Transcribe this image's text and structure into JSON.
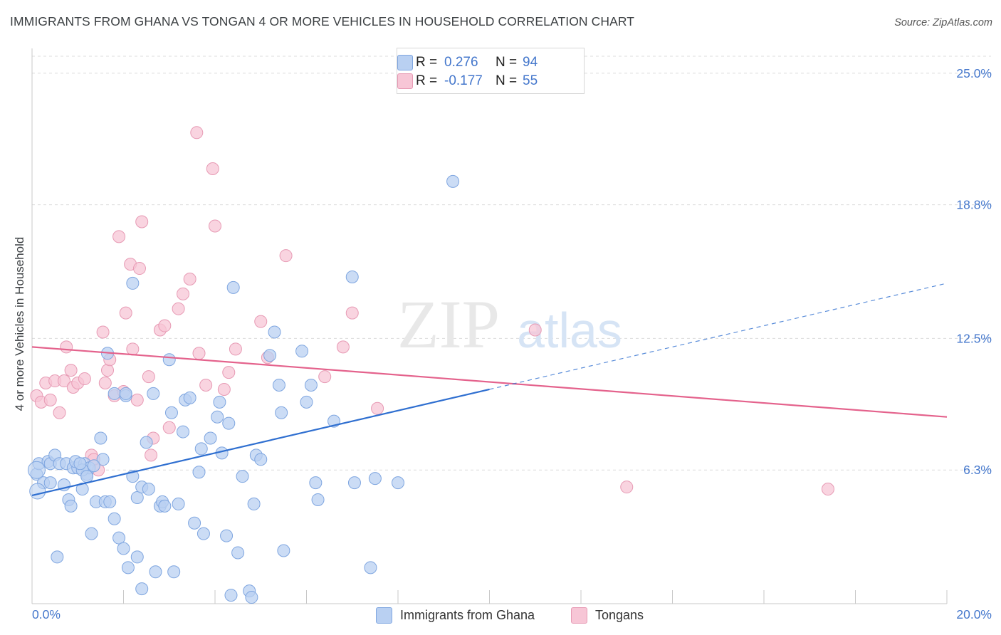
{
  "title": "IMMIGRANTS FROM GHANA VS TONGAN 4 OR MORE VEHICLES IN HOUSEHOLD CORRELATION CHART",
  "source": "Source: ZipAtlas.com",
  "watermark": {
    "zip": "ZIP",
    "atlas": "atlas"
  },
  "legend_top": [
    {
      "r_label": "R =",
      "r_value": "0.276",
      "n_label": "N =",
      "n_value": "94"
    },
    {
      "r_label": "R =",
      "r_value": "-0.177",
      "n_label": "N =",
      "n_value": "55"
    }
  ],
  "legend_bottom": [
    "Immigrants from Ghana",
    "Tongans"
  ],
  "colors": {
    "blue_fill": "#b9d0f2",
    "blue_stroke": "#7fa6e0",
    "blue_line": "#2f6fd0",
    "pink_fill": "#f7c6d6",
    "pink_stroke": "#e79ab4",
    "pink_line": "#e4628c",
    "tick_text": "#4477cc",
    "grid": "#dcdcdc"
  },
  "chart_data": {
    "type": "scatter",
    "xlabel": "",
    "ylabel": "4 or more Vehicles in Household",
    "xlim": [
      0,
      20
    ],
    "ylim": [
      0,
      25.8
    ],
    "x_tick_labels": [
      {
        "value": 0,
        "label": "0.0%"
      },
      {
        "value": 20,
        "label": "20.0%"
      }
    ],
    "y_tick_labels": [
      {
        "value": 6.3,
        "label": "6.3%"
      },
      {
        "value": 12.5,
        "label": "12.5%"
      },
      {
        "value": 18.8,
        "label": "18.8%"
      },
      {
        "value": 25.0,
        "label": "25.0%"
      }
    ],
    "grid": true,
    "series": [
      {
        "name": "Immigrants from Ghana",
        "r": 0.276,
        "n": 94,
        "trend": {
          "solid": [
            [
              0,
              5.1
            ],
            [
              10,
              10.1
            ]
          ],
          "dashed": [
            [
              10,
              10.1
            ],
            [
              20,
              15.1
            ]
          ]
        },
        "points": [
          [
            0.1,
            6.1
          ],
          [
            0.15,
            6.6
          ],
          [
            0.25,
            5.7
          ],
          [
            0.4,
            5.7
          ],
          [
            0.35,
            6.7
          ],
          [
            0.4,
            6.6
          ],
          [
            0.5,
            7.0
          ],
          [
            0.6,
            6.6
          ],
          [
            0.7,
            5.6
          ],
          [
            0.75,
            6.6
          ],
          [
            0.8,
            4.9
          ],
          [
            0.85,
            4.6
          ],
          [
            0.9,
            6.4
          ],
          [
            1.0,
            6.4
          ],
          [
            0.95,
            6.7
          ],
          [
            1.1,
            5.4
          ],
          [
            1.15,
            6.6
          ],
          [
            1.2,
            6.1
          ],
          [
            1.25,
            6.4
          ],
          [
            1.4,
            4.8
          ],
          [
            1.1,
            6.3
          ],
          [
            1.5,
            7.8
          ],
          [
            1.55,
            6.8
          ],
          [
            1.3,
            3.3
          ],
          [
            1.6,
            4.8
          ],
          [
            1.65,
            11.8
          ],
          [
            1.8,
            9.9
          ],
          [
            1.9,
            3.1
          ],
          [
            1.7,
            4.8
          ],
          [
            1.8,
            4.0
          ],
          [
            2.05,
            9.8
          ],
          [
            2.0,
            2.6
          ],
          [
            2.1,
            1.7
          ],
          [
            2.2,
            6.0
          ],
          [
            2.3,
            5.0
          ],
          [
            2.3,
            2.2
          ],
          [
            2.2,
            15.1
          ],
          [
            2.4,
            5.5
          ],
          [
            2.5,
            7.6
          ],
          [
            2.55,
            5.4
          ],
          [
            2.65,
            9.9
          ],
          [
            2.7,
            1.5
          ],
          [
            2.8,
            4.6
          ],
          [
            2.85,
            4.8
          ],
          [
            2.9,
            4.6
          ],
          [
            3.0,
            11.5
          ],
          [
            3.05,
            9.0
          ],
          [
            3.1,
            1.5
          ],
          [
            3.2,
            4.7
          ],
          [
            3.3,
            8.1
          ],
          [
            3.35,
            9.6
          ],
          [
            3.45,
            9.7
          ],
          [
            3.55,
            3.8
          ],
          [
            3.65,
            6.2
          ],
          [
            3.7,
            7.3
          ],
          [
            3.75,
            3.3
          ],
          [
            3.9,
            7.8
          ],
          [
            4.05,
            8.8
          ],
          [
            4.1,
            9.5
          ],
          [
            4.15,
            7.1
          ],
          [
            4.25,
            3.2
          ],
          [
            4.3,
            8.5
          ],
          [
            4.4,
            14.9
          ],
          [
            4.5,
            2.4
          ],
          [
            4.6,
            6.0
          ],
          [
            4.75,
            0.6
          ],
          [
            4.8,
            0.3
          ],
          [
            4.85,
            4.7
          ],
          [
            4.9,
            7.0
          ],
          [
            5.0,
            6.8
          ],
          [
            5.2,
            11.7
          ],
          [
            5.3,
            12.8
          ],
          [
            5.4,
            10.3
          ],
          [
            5.45,
            9.0
          ],
          [
            5.5,
            2.5
          ],
          [
            5.9,
            11.9
          ],
          [
            6.0,
            9.5
          ],
          [
            6.1,
            10.3
          ],
          [
            6.2,
            5.7
          ],
          [
            6.25,
            4.9
          ],
          [
            6.6,
            8.6
          ],
          [
            7.0,
            15.4
          ],
          [
            7.05,
            5.7
          ],
          [
            7.4,
            1.7
          ],
          [
            7.5,
            5.9
          ],
          [
            8.0,
            5.7
          ],
          [
            9.2,
            19.9
          ],
          [
            0.55,
            2.2
          ],
          [
            2.4,
            0.7
          ],
          [
            2.05,
            9.9
          ],
          [
            4.35,
            0.4
          ],
          [
            1.05,
            6.6
          ],
          [
            1.2,
            6.0
          ],
          [
            1.35,
            6.5
          ]
        ]
      },
      {
        "name": "Tongans",
        "r": -0.177,
        "n": 55,
        "trend": {
          "solid": [
            [
              0,
              12.1
            ],
            [
              20,
              8.8
            ]
          ]
        },
        "points": [
          [
            0.1,
            9.8
          ],
          [
            0.2,
            9.5
          ],
          [
            0.3,
            10.4
          ],
          [
            0.4,
            9.6
          ],
          [
            0.5,
            10.5
          ],
          [
            0.6,
            9.0
          ],
          [
            0.7,
            10.5
          ],
          [
            0.75,
            12.1
          ],
          [
            0.85,
            11.0
          ],
          [
            0.9,
            10.2
          ],
          [
            1.0,
            10.4
          ],
          [
            1.15,
            10.6
          ],
          [
            1.3,
            7.0
          ],
          [
            1.35,
            6.8
          ],
          [
            1.45,
            6.3
          ],
          [
            1.55,
            12.8
          ],
          [
            1.6,
            10.4
          ],
          [
            1.65,
            11.0
          ],
          [
            1.7,
            11.5
          ],
          [
            1.8,
            9.8
          ],
          [
            1.9,
            17.3
          ],
          [
            2.0,
            10.0
          ],
          [
            2.05,
            13.7
          ],
          [
            2.15,
            16.0
          ],
          [
            2.2,
            12.0
          ],
          [
            2.3,
            9.6
          ],
          [
            2.35,
            15.8
          ],
          [
            2.4,
            18.0
          ],
          [
            2.55,
            10.7
          ],
          [
            2.6,
            7.0
          ],
          [
            2.65,
            7.8
          ],
          [
            2.8,
            12.9
          ],
          [
            2.9,
            13.1
          ],
          [
            3.0,
            8.3
          ],
          [
            3.2,
            13.9
          ],
          [
            3.3,
            14.6
          ],
          [
            3.45,
            15.3
          ],
          [
            3.6,
            22.2
          ],
          [
            3.65,
            11.8
          ],
          [
            3.8,
            10.3
          ],
          [
            3.95,
            20.5
          ],
          [
            4.0,
            17.8
          ],
          [
            4.2,
            10.1
          ],
          [
            4.3,
            10.9
          ],
          [
            4.45,
            12.0
          ],
          [
            5.0,
            13.3
          ],
          [
            5.15,
            11.6
          ],
          [
            5.55,
            16.4
          ],
          [
            6.4,
            10.7
          ],
          [
            6.8,
            12.1
          ],
          [
            7.0,
            13.7
          ],
          [
            7.55,
            9.2
          ],
          [
            11.0,
            12.9
          ],
          [
            13.0,
            5.5
          ],
          [
            17.4,
            5.4
          ]
        ]
      }
    ]
  }
}
